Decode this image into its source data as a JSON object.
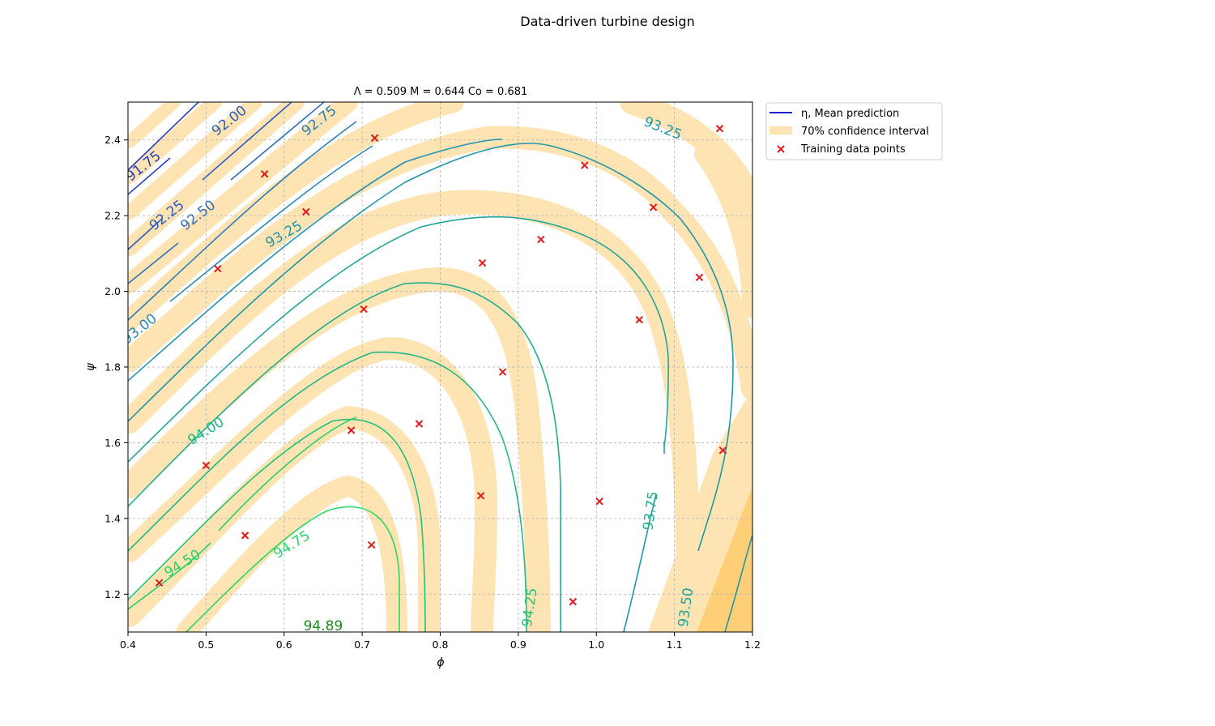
{
  "chart_data": {
    "type": "contour",
    "title": "Data-driven turbine design",
    "subtitle": "Λ = 0.509   M = 0.644   Co = 0.681",
    "xlabel": "ϕ",
    "ylabel": "ψ",
    "xlim": [
      0.4,
      1.2
    ],
    "ylim": [
      1.1,
      2.5
    ],
    "xticks": [
      "0.4",
      "0.5",
      "0.6",
      "0.7",
      "0.8",
      "0.9",
      "1.0",
      "1.1",
      "1.2"
    ],
    "yticks": [
      "1.2",
      "1.4",
      "1.6",
      "1.8",
      "2.0",
      "2.2",
      "2.4"
    ],
    "grid": true,
    "legend_position": "outside-upper-right",
    "legend": [
      {
        "label": "η, Mean prediction",
        "kind": "line",
        "color": "#1f1fd6"
      },
      {
        "label": "70% confidence interval",
        "kind": "patch",
        "color": "#ffe4b3"
      },
      {
        "label": "Training data points",
        "kind": "marker",
        "color": "#e31a1c"
      }
    ],
    "contour_labels": [
      {
        "text": "91.75",
        "x": 0.42,
        "y": 2.33,
        "angle": -38,
        "color": "#2b3fc4"
      },
      {
        "text": "92.00",
        "x": 0.53,
        "y": 2.45,
        "angle": -38,
        "color": "#2f5cc0"
      },
      {
        "text": "92.25",
        "x": 0.45,
        "y": 2.2,
        "angle": -38,
        "color": "#2f5cc0"
      },
      {
        "text": "92.50",
        "x": 0.49,
        "y": 2.2,
        "angle": -38,
        "color": "#2f6fbd"
      },
      {
        "text": "92.75",
        "x": 0.645,
        "y": 2.45,
        "angle": -38,
        "color": "#2a7fba"
      },
      {
        "text": "93.00",
        "x": 0.415,
        "y": 1.9,
        "angle": -38,
        "color": "#2a8ab8"
      },
      {
        "text": "93.25",
        "x": 0.6,
        "y": 2.15,
        "angle": -30,
        "color": "#1e98ab"
      },
      {
        "text": "93.25",
        "x": 1.085,
        "y": 2.43,
        "angle": 22,
        "color": "#1e98ab"
      },
      {
        "text": "93.50",
        "x": 1.115,
        "y": 1.165,
        "angle": -82,
        "color": "#20a69c"
      },
      {
        "text": "93.75",
        "x": 1.07,
        "y": 1.42,
        "angle": -82,
        "color": "#20b08e"
      },
      {
        "text": "94.00",
        "x": 0.5,
        "y": 1.63,
        "angle": -32,
        "color": "#22b889"
      },
      {
        "text": "94.25",
        "x": 0.915,
        "y": 1.165,
        "angle": -82,
        "color": "#22c47c"
      },
      {
        "text": "94.50",
        "x": 0.47,
        "y": 1.28,
        "angle": -32,
        "color": "#2bd06c"
      },
      {
        "text": "94.75",
        "x": 0.61,
        "y": 1.33,
        "angle": -32,
        "color": "#2bd866"
      },
      {
        "text": "94.89",
        "x": 0.65,
        "y": 1.115,
        "angle": 0,
        "color": "#1f8c1f"
      }
    ],
    "training_points": [
      {
        "x": 0.44,
        "y": 1.23
      },
      {
        "x": 0.5,
        "y": 1.54
      },
      {
        "x": 0.515,
        "y": 2.06
      },
      {
        "x": 0.55,
        "y": 1.355
      },
      {
        "x": 0.575,
        "y": 2.31
      },
      {
        "x": 0.628,
        "y": 2.21
      },
      {
        "x": 0.686,
        "y": 1.633
      },
      {
        "x": 0.702,
        "y": 1.953
      },
      {
        "x": 0.712,
        "y": 1.33
      },
      {
        "x": 0.716,
        "y": 2.405
      },
      {
        "x": 0.773,
        "y": 1.65
      },
      {
        "x": 0.852,
        "y": 1.46
      },
      {
        "x": 0.854,
        "y": 2.075
      },
      {
        "x": 0.88,
        "y": 1.787
      },
      {
        "x": 0.929,
        "y": 2.137
      },
      {
        "x": 0.97,
        "y": 1.18
      },
      {
        "x": 0.985,
        "y": 2.333
      },
      {
        "x": 1.004,
        "y": 1.445
      },
      {
        "x": 1.055,
        "y": 1.925
      },
      {
        "x": 1.073,
        "y": 2.222
      },
      {
        "x": 1.132,
        "y": 2.037
      },
      {
        "x": 1.158,
        "y": 2.43
      },
      {
        "x": 1.162,
        "y": 1.58
      }
    ]
  }
}
